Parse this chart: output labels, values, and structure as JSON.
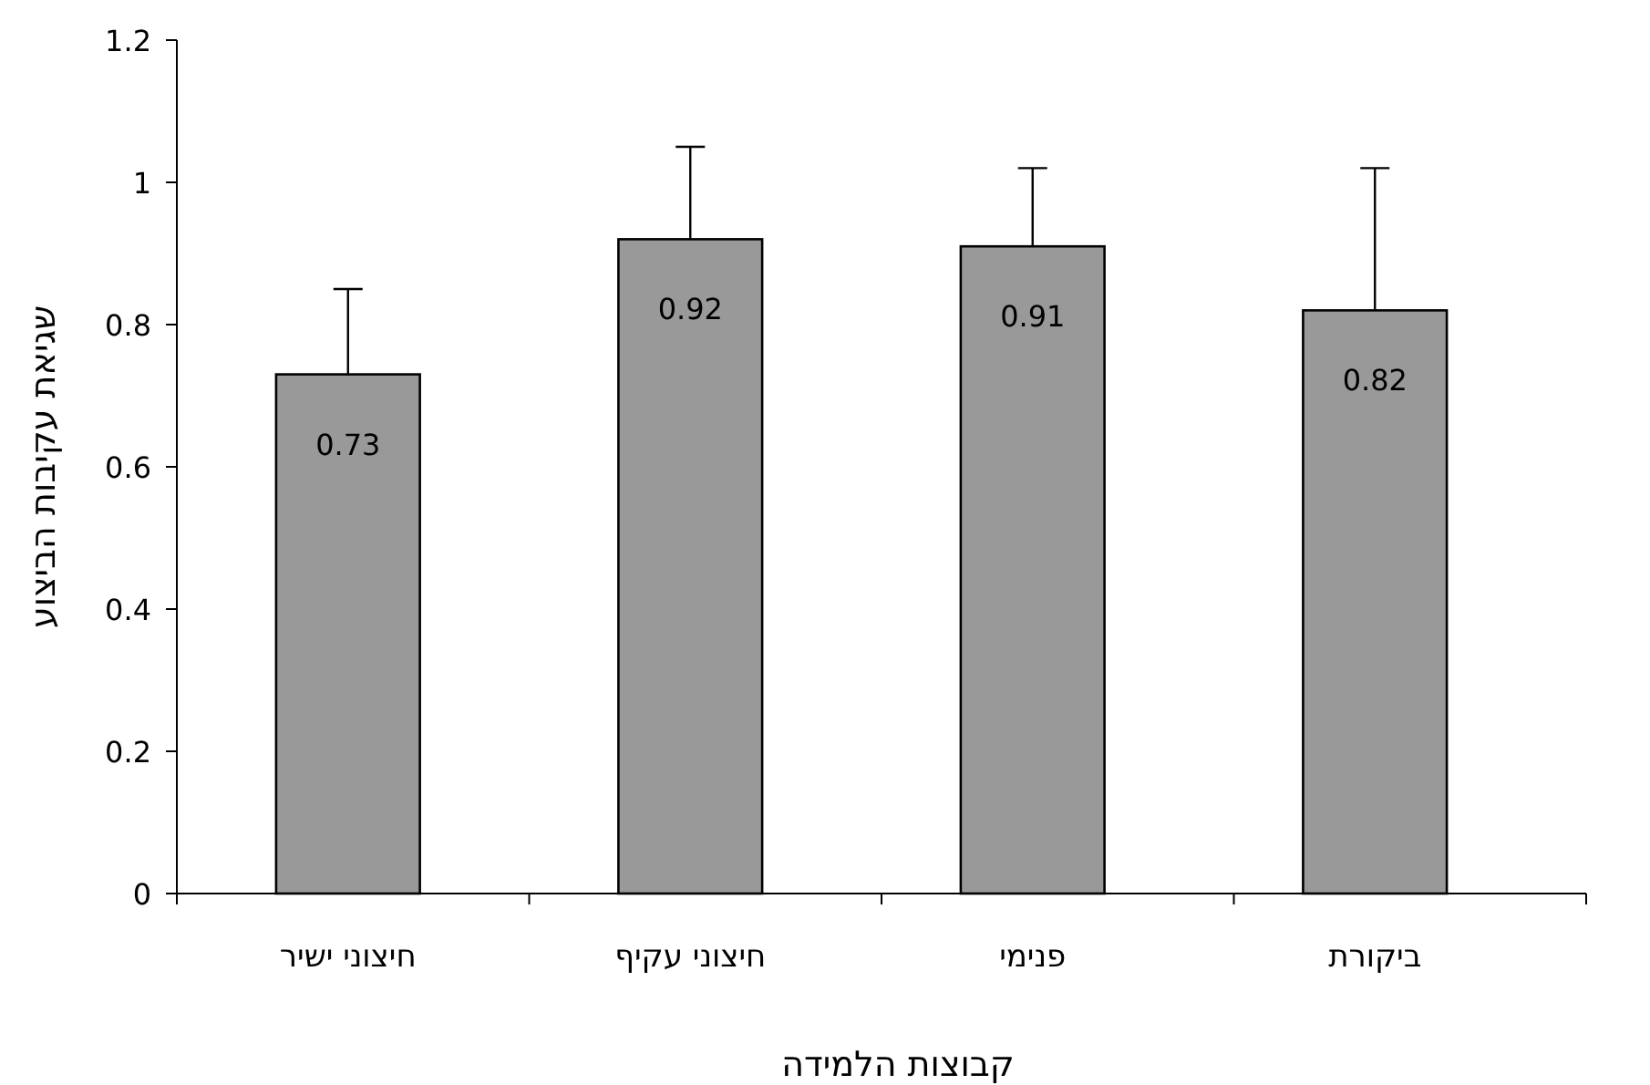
{
  "chart_data": {
    "type": "bar",
    "xlabel": "קבוצות הלמידה",
    "ylabel": "שגיאת עקיבות הביצוע",
    "categories": [
      "חיצוני ישיר",
      "חיצוני עקיף",
      "פנימי",
      "ביקורת"
    ],
    "values": [
      0.73,
      0.92,
      0.91,
      0.82
    ],
    "errors": [
      [
        0.73,
        0.85
      ],
      [
        0.92,
        1.05
      ],
      [
        0.91,
        1.02
      ],
      [
        0.82,
        1.02
      ]
    ],
    "color": "#999999",
    "ylim": [
      0,
      1.2
    ],
    "yticks": [
      0,
      0.2,
      0.4,
      0.6,
      0.8,
      1,
      1.2
    ],
    "data_labels": true
  }
}
